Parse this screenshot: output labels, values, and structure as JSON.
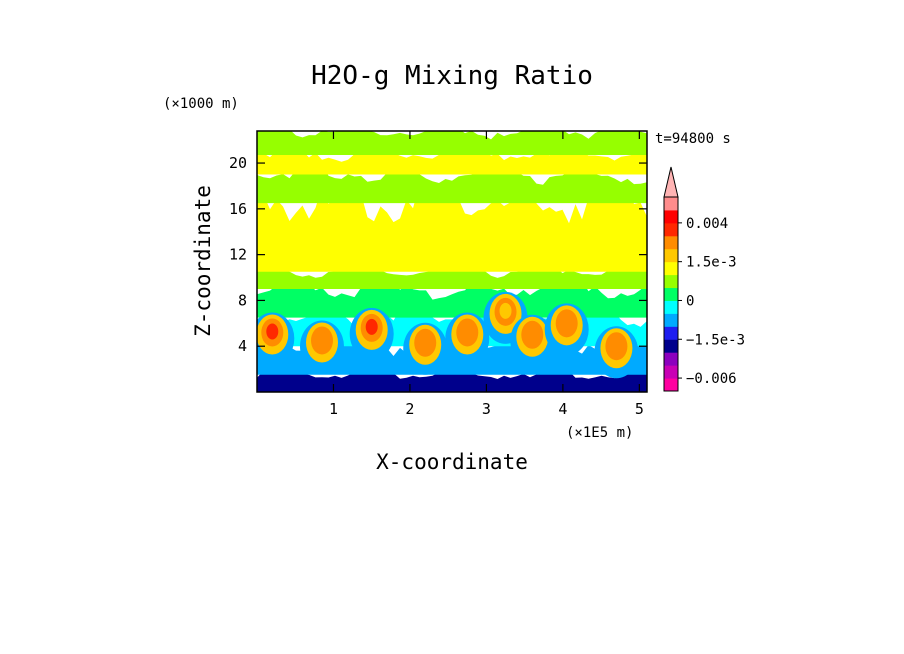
{
  "chart_data": {
    "type": "heatmap",
    "title": "H2O-g Mixing Ratio",
    "xlabel": "X-coordinate",
    "ylabel": "Z-coordinate",
    "x_unit": "(×1E5 m)",
    "y_unit": "(×1000 m)",
    "time_label": "t=94800 s",
    "xlim": [
      0,
      5.1
    ],
    "ylim": [
      0,
      22.8
    ],
    "x_ticks": [
      1,
      2,
      3,
      4,
      5
    ],
    "y_ticks": [
      4,
      8,
      12,
      16,
      20
    ],
    "x_tick_labels": [
      "1",
      "2",
      "3",
      "4",
      "5"
    ],
    "y_tick_labels": [
      "4",
      "8",
      "12",
      "16",
      "20"
    ],
    "colorbar": {
      "levels": [
        -0.009,
        -0.006,
        -0.0045,
        -0.003,
        -0.0015,
        -0.001,
        -0.0005,
        0,
        0.0005,
        0.001,
        0.0015,
        0.002,
        0.003,
        0.004,
        0.006
      ],
      "colors": [
        "#ff00a0",
        "#c800b4",
        "#8c00be",
        "#00008c",
        "#1e1ef0",
        "#00aaff",
        "#00ffff",
        "#00ff64",
        "#96ff00",
        "#ffff00",
        "#ffc800",
        "#ff8c00",
        "#ff2800",
        "#ff0000",
        "#ff8c8c",
        "#ffb4b4"
      ],
      "labels": [
        {
          "value": 0.004,
          "text": "0.004"
        },
        {
          "value": 0.0015,
          "text": "1.5e-3"
        },
        {
          "value": 0,
          "text": "0"
        },
        {
          "value": -0.0015,
          "text": "−1.5e-3"
        },
        {
          "value": -0.006,
          "text": "−0.006"
        }
      ]
    },
    "bands": [
      {
        "name": "surface-band",
        "z0": 0,
        "z1": 1.5,
        "level": -0.0045
      },
      {
        "name": "boundary-layer",
        "z0": 1.5,
        "z1": 4,
        "level": -0.0015
      },
      {
        "name": "lower-moist-layer",
        "z0": 4,
        "z1": 6.5,
        "level": -0.001
      },
      {
        "name": "cyan-layer",
        "z0": 6.5,
        "z1": 9,
        "level": -0.0005
      },
      {
        "name": "green-layer",
        "z0": 9,
        "z1": 10.5,
        "level": 0
      },
      {
        "name": "mid-layer",
        "z0": 10.5,
        "z1": 16.5,
        "level": 0.0005
      },
      {
        "name": "upper-layer",
        "z0": 16.5,
        "z1": 19,
        "level": 0
      },
      {
        "name": "tropopause-band",
        "z0": 19,
        "z1": 20.7,
        "level": 0.0005
      },
      {
        "name": "top-layer",
        "z0": 20.7,
        "z1": 22.8,
        "level": 0
      }
    ],
    "plumes": [
      {
        "x": 0.2,
        "z": 5.2,
        "level": 0.002
      },
      {
        "x": 0.85,
        "z": 4.5,
        "level": 0.0015
      },
      {
        "x": 1.5,
        "z": 5.6,
        "level": 0.002
      },
      {
        "x": 2.2,
        "z": 4.3,
        "level": 0.0015
      },
      {
        "x": 2.75,
        "z": 5.2,
        "level": 0.0015
      },
      {
        "x": 3.25,
        "z": 7.0,
        "level": 0.001
      },
      {
        "x": 3.6,
        "z": 5.0,
        "level": 0.0015
      },
      {
        "x": 4.05,
        "z": 6.0,
        "level": 0.0015
      },
      {
        "x": 4.7,
        "z": 4.0,
        "level": 0.0015
      }
    ]
  }
}
